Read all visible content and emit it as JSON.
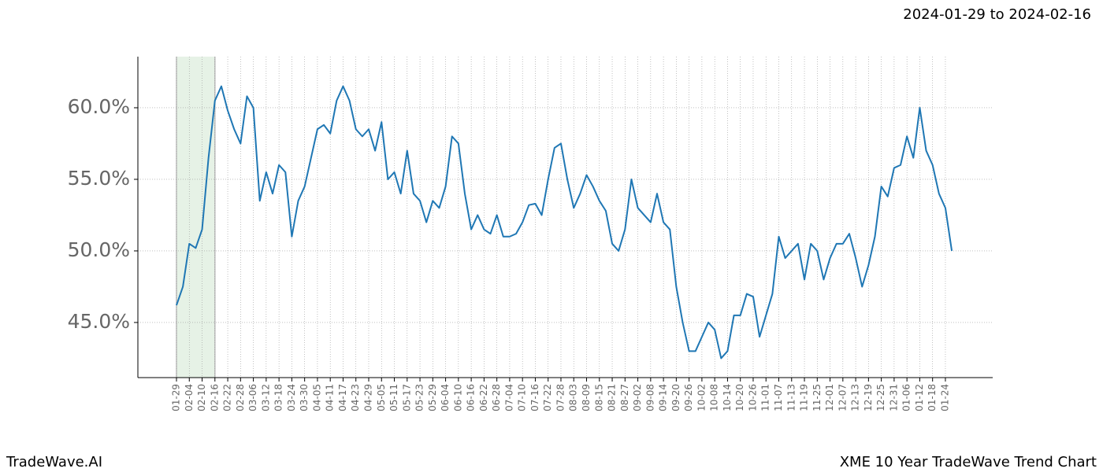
{
  "chart_data": {
    "type": "line",
    "date_range": "2024-01-29 to 2024-02-16",
    "brand": "TradeWave.AI",
    "title": "XME 10 Year TradeWave Trend Chart",
    "categories": [
      "01-29",
      null,
      "02-04",
      null,
      "02-10",
      null,
      "02-16",
      null,
      "02-22",
      null,
      "02-28",
      null,
      "03-06",
      null,
      "03-12",
      null,
      "03-18",
      null,
      "03-24",
      null,
      "03-30",
      null,
      "04-05",
      null,
      "04-11",
      null,
      "04-17",
      null,
      "04-23",
      null,
      "04-29",
      null,
      "05-05",
      null,
      "05-11",
      null,
      "05-17",
      null,
      "05-23",
      null,
      "05-29",
      null,
      "06-04",
      null,
      "06-10",
      null,
      "06-16",
      null,
      "06-22",
      null,
      "06-28",
      null,
      "07-04",
      null,
      "07-10",
      null,
      "07-16",
      null,
      "07-22",
      null,
      "07-28",
      null,
      "08-03",
      null,
      "08-09",
      null,
      "08-15",
      null,
      "08-21",
      null,
      "08-27",
      null,
      "09-02",
      null,
      "09-08",
      null,
      "09-14",
      null,
      "09-20",
      null,
      "09-26",
      null,
      "10-02",
      null,
      "10-08",
      null,
      "10-14",
      null,
      "10-20",
      null,
      "10-26",
      null,
      "11-01",
      null,
      "11-07",
      null,
      "11-13",
      null,
      "11-19",
      null,
      "11-25",
      null,
      "12-01",
      null,
      "12-07",
      null,
      "12-13",
      null,
      "12-19",
      null,
      "12-25",
      null,
      "12-31",
      null,
      "01-06",
      null,
      "01-12",
      null,
      "01-18",
      null,
      "01-24",
      null
    ],
    "series": [
      {
        "color": "#1f77b4",
        "values": [
          46.2,
          47.5,
          50.5,
          50.2,
          51.5,
          56.5,
          60.5,
          61.5,
          59.8,
          58.5,
          57.5,
          60.8,
          60.0,
          53.5,
          55.5,
          54.0,
          56.0,
          55.5,
          51.0,
          53.5,
          54.5,
          56.5,
          58.5,
          58.8,
          58.2,
          60.5,
          61.5,
          60.5,
          58.5,
          58.0,
          58.5,
          57.0,
          59.0,
          55.0,
          55.5,
          54.0,
          57.0,
          54.0,
          53.5,
          52.0,
          53.5,
          53.0,
          54.5,
          58.0,
          57.5,
          54.0,
          51.5,
          52.5,
          51.5,
          51.2,
          52.5,
          51.0,
          51.0,
          51.2,
          52.0,
          53.2,
          53.3,
          52.5,
          55.0,
          57.2,
          57.5,
          55.0,
          53.0,
          54.0,
          55.3,
          54.5,
          53.5,
          52.8,
          50.5,
          50.0,
          51.5,
          55.0,
          53.0,
          52.5,
          52.0,
          54.0,
          52.0,
          51.5,
          47.5,
          45.0,
          43.0,
          43.0,
          44.0,
          45.0,
          44.5,
          42.5,
          43.0,
          45.5,
          45.5,
          47.0,
          46.8,
          44.0,
          45.5,
          47.0,
          51.0,
          49.5,
          50.0,
          50.5,
          48.0,
          50.5,
          50.0,
          48.0,
          49.5,
          50.5,
          50.5,
          51.2,
          49.5,
          47.5,
          49.0,
          51.0,
          54.5,
          53.8,
          55.8,
          56.0,
          58.0,
          56.5,
          60.0,
          57.0,
          56.0,
          54.0,
          53.0,
          50.0
        ]
      }
    ],
    "shade": {
      "from": "01-29",
      "to": "02-16",
      "color": "#e6f2e6"
    },
    "ylim": [
      41.15,
      63.57
    ],
    "yticks": [
      {
        "value": 45,
        "label": "45.0%"
      },
      {
        "value": 50,
        "label": "50.0%"
      },
      {
        "value": 55,
        "label": "55.0%"
      },
      {
        "value": 60,
        "label": "60.0%"
      }
    ],
    "grid": true
  }
}
